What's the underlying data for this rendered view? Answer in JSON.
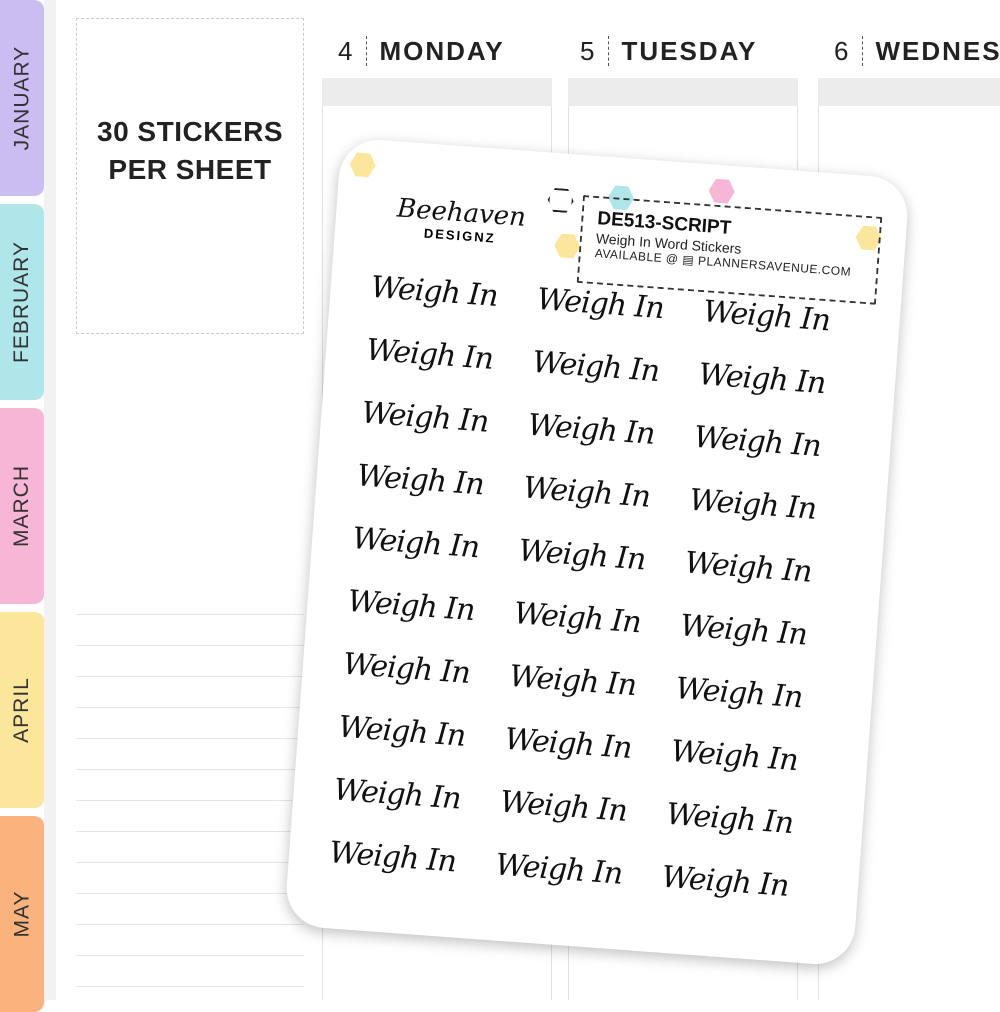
{
  "tabs": [
    {
      "label": "JANUARY",
      "color": "#cbbcf2"
    },
    {
      "label": "FEBRUARY",
      "color": "#aee6ea"
    },
    {
      "label": "MARCH",
      "color": "#f7b6d6"
    },
    {
      "label": "APRIL",
      "color": "#fbe69b"
    },
    {
      "label": "MAY",
      "color": "#fab37c"
    }
  ],
  "promo": {
    "line1": "30 STICKERS",
    "line2": "PER SHEET"
  },
  "days": [
    {
      "num": "4",
      "name": "MONDAY"
    },
    {
      "num": "5",
      "name": "TUESDAY"
    },
    {
      "num": "6",
      "name": "WEDNES"
    }
  ],
  "sheet": {
    "logo_line1": "Beehaven",
    "logo_line2": "DESIGNZ",
    "code": "DE513-SCRIPT",
    "subtitle": "Weigh In Word Stickers",
    "available": "AVAILABLE @ ▤ PLANNERSAVENUE.COM",
    "watermark": "BEEHAVEN DESIGNZ",
    "hex_colors": [
      "#fbe69b",
      "#aee6ea",
      "#f7b6d6"
    ],
    "stickers": [
      "Weigh In",
      "Weigh In",
      "Weigh In",
      "Weigh In",
      "Weigh In",
      "Weigh In",
      "Weigh In",
      "Weigh In",
      "Weigh In",
      "Weigh In",
      "Weigh In",
      "Weigh In",
      "Weigh In",
      "Weigh In",
      "Weigh In",
      "Weigh In",
      "Weigh In",
      "Weigh In",
      "Weigh In",
      "Weigh In",
      "Weigh In",
      "Weigh In",
      "Weigh In",
      "Weigh In",
      "Weigh In",
      "Weigh In",
      "Weigh In",
      "Weigh In",
      "Weigh In",
      "Weigh In"
    ]
  }
}
